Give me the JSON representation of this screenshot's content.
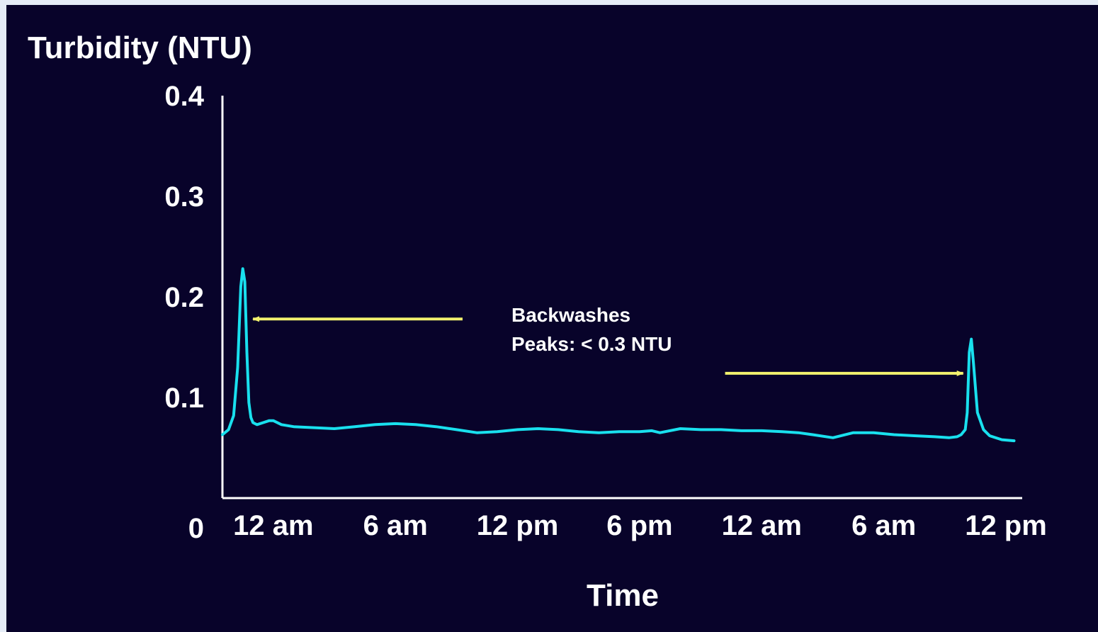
{
  "chart_data": {
    "type": "line",
    "ylabel": "Turbidity (NTU)",
    "xlabel": "Time",
    "ylim": [
      0,
      0.4
    ],
    "yticks": [
      "0",
      "0.1",
      "0.2",
      "0.3",
      "0.4"
    ],
    "ytick_values": [
      0,
      0.1,
      0.2,
      0.3,
      0.4
    ],
    "xlim": [
      -2.5,
      36.8
    ],
    "xticks": [
      "12 am",
      "6 am",
      "12 pm",
      "6 pm",
      "12 am",
      "6 am",
      "12 pm"
    ],
    "xtick_values": [
      0,
      6,
      12,
      18,
      24,
      30,
      36
    ],
    "grid": false,
    "series": [
      {
        "values_x": [
          -2.5,
          -2.2,
          -1.95,
          -1.75,
          -1.6,
          -1.5,
          -1.4,
          -1.3,
          -1.2,
          -1.1,
          -1.0,
          -0.8,
          -0.5,
          -0.2,
          0,
          0.4,
          1.0,
          2.0,
          3.0,
          4.0,
          5.0,
          6.0,
          7.0,
          8.0,
          9.0,
          10.0,
          11.0,
          12.0,
          13.0,
          14.0,
          15.0,
          16.0,
          17.0,
          18.0,
          18.6,
          19.0,
          20.0,
          21.0,
          22.0,
          23.0,
          24.0,
          25.0,
          25.8,
          26.5,
          27.5,
          28.5,
          29.5,
          30.5,
          31.5,
          32.5,
          33.2,
          33.6,
          33.8,
          34.0,
          34.1,
          34.2,
          34.3,
          34.4,
          34.6,
          34.9,
          35.2,
          35.8,
          36.4
        ],
        "values_y": [
          0.063,
          0.068,
          0.082,
          0.13,
          0.21,
          0.228,
          0.215,
          0.145,
          0.095,
          0.08,
          0.075,
          0.073,
          0.075,
          0.077,
          0.077,
          0.073,
          0.071,
          0.07,
          0.069,
          0.071,
          0.073,
          0.074,
          0.073,
          0.071,
          0.068,
          0.065,
          0.066,
          0.068,
          0.069,
          0.068,
          0.066,
          0.065,
          0.066,
          0.066,
          0.067,
          0.065,
          0.069,
          0.068,
          0.068,
          0.067,
          0.067,
          0.066,
          0.065,
          0.063,
          0.06,
          0.065,
          0.065,
          0.063,
          0.062,
          0.061,
          0.06,
          0.061,
          0.063,
          0.068,
          0.085,
          0.145,
          0.158,
          0.135,
          0.085,
          0.068,
          0.062,
          0.058,
          0.057
        ],
        "color": "#19e0ee"
      }
    ],
    "annotations": [
      {
        "lines": [
          "Backwashes",
          "Peaks: < 0.3 NTU"
        ],
        "color": "#ffffff"
      }
    ],
    "arrows": [
      {
        "from": [
          9.3,
          0.178
        ],
        "to": [
          -1.0,
          0.178
        ],
        "color": "#f2f26e"
      },
      {
        "from": [
          22.2,
          0.124
        ],
        "to": [
          33.9,
          0.124
        ],
        "color": "#f2f26e"
      }
    ],
    "axis_color": "#ffffff"
  }
}
